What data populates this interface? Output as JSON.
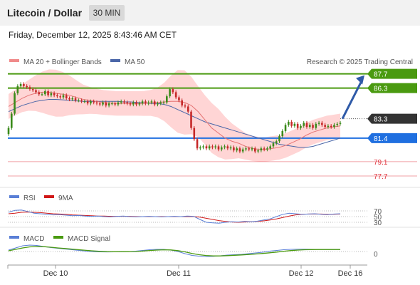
{
  "header": {
    "title": "Litecoin / Dollar",
    "timeframe": "30 MIN",
    "datetime": "Friday, December 12, 2025 8:43:46 AM CET"
  },
  "legend": {
    "ma20_label": "MA 20 + Bollinger Bands",
    "ma50_label": "MA 50",
    "credit": "Research © 2025 Trading Central"
  },
  "colors": {
    "resistance": "#4a9a10",
    "support": "#1f6fe0",
    "pivot": "#333333",
    "weak": "#e0313b",
    "candle_up": "#3a8a1a",
    "candle_down": "#c62828",
    "bollinger": "#ffc7c7",
    "ma20": "#e57373",
    "ma50": "#4a66a8",
    "rsi": "#5a7fd6",
    "rsi_ma": "#d01818",
    "macd": "#5a7fd6",
    "macd_signal": "#4a9a10"
  },
  "levels": [
    {
      "value": 87.7,
      "label": "87.7",
      "style": "box",
      "color": "#4a9a10"
    },
    {
      "value": 86.3,
      "label": "86.3",
      "style": "box",
      "color": "#4a9a10"
    },
    {
      "value": 83.3,
      "label": "83.3",
      "style": "box",
      "color": "#333333"
    },
    {
      "value": 81.4,
      "label": "81.4",
      "style": "box",
      "color": "#1f6fe0"
    },
    {
      "value": 79.1,
      "label": "79.1",
      "style": "text",
      "color": "#e0313b"
    },
    {
      "value": 77.7,
      "label": "77.7",
      "style": "text",
      "color": "#e0313b"
    }
  ],
  "rsi_panel": {
    "rsi_label": "RSI",
    "ma_label": "9MA",
    "levels": [
      "70",
      "50",
      "30"
    ]
  },
  "macd_panel": {
    "macd_label": "MACD",
    "signal_label": "MACD Signal",
    "zero_label": "0"
  },
  "xaxis": {
    "labels": [
      "Dec 10",
      "Dec 11",
      "Dec 12",
      "Dec 16"
    ]
  },
  "chart_data": {
    "type": "candlestick",
    "ylim": [
      77.0,
      88.3
    ],
    "price_close": [
      82.4,
      83.8,
      85.8,
      86.5,
      86.7,
      86.5,
      86.4,
      86.2,
      86.1,
      85.9,
      85.7,
      85.7,
      86.0,
      85.6,
      85.8,
      85.6,
      85.5,
      85.4,
      85.6,
      85.3,
      85.2,
      85.3,
      85.1,
      85.1,
      85.0,
      85.0,
      84.8,
      85.0,
      84.9,
      84.8,
      84.7,
      84.9,
      84.6,
      84.8,
      84.8,
      84.7,
      84.9,
      85.0,
      84.9,
      84.8,
      84.7,
      84.9,
      84.7,
      84.8,
      85.0,
      84.8,
      84.9,
      85.0,
      84.7,
      84.8,
      84.9,
      84.9,
      85.5,
      86.2,
      85.9,
      85.4,
      85.1,
      84.6,
      84.5,
      84.0,
      82.4,
      81.3,
      80.4,
      80.5,
      80.6,
      80.4,
      80.6,
      80.5,
      80.6,
      80.3,
      80.5,
      80.6,
      80.4,
      80.5,
      80.2,
      80.4,
      80.1,
      80.3,
      80.4,
      80.3,
      80.4,
      80.1,
      80.2,
      80.4,
      80.3,
      80.4,
      80.6,
      80.9,
      81.1,
      81.6,
      82.1,
      82.7,
      83.0,
      82.6,
      82.8,
      82.4,
      82.6,
      82.9,
      82.5,
      82.7,
      82.4,
      82.8,
      82.9,
      82.7,
      82.5,
      82.6,
      82.5,
      82.7,
      82.8,
      82.9
    ],
    "ma20": [
      84.5,
      84.9,
      85.3,
      85.6,
      85.8,
      85.9,
      85.9,
      85.8,
      85.7,
      85.6,
      85.4,
      85.2,
      85.1,
      85.0,
      84.9,
      84.85,
      84.8,
      84.8,
      84.8,
      84.8,
      84.8,
      84.85,
      84.9,
      84.95,
      85.0,
      85.0,
      84.9,
      84.6,
      84.0,
      83.2,
      82.4,
      81.9,
      81.4,
      81.1,
      80.9,
      80.6,
      80.4,
      80.3,
      80.3,
      80.4,
      80.5,
      80.7,
      81.0,
      81.3,
      81.7,
      82.0,
      82.2,
      82.4,
      82.5,
      82.6
    ],
    "ma50": [
      84.0,
      84.3,
      84.6,
      84.8,
      85.0,
      85.1,
      85.2,
      85.2,
      85.15,
      85.1,
      85.05,
      85.0,
      85.0,
      85.0,
      85.0,
      85.0,
      85.0,
      84.95,
      84.95,
      84.9,
      84.85,
      84.8,
      84.8,
      84.7,
      84.5,
      84.2,
      83.9,
      83.6,
      83.3,
      83.0,
      82.8,
      82.6,
      82.4,
      82.2,
      82.0,
      81.8,
      81.6,
      81.4,
      81.2,
      81.0,
      80.8,
      80.7,
      80.6,
      80.5,
      80.5,
      80.6,
      80.8,
      81.0,
      81.2,
      81.4
    ],
    "forecast": {
      "from": 83.3,
      "to": 87.7
    },
    "rsi": [
      65,
      72,
      73,
      68,
      62,
      60,
      58,
      56,
      57,
      55,
      53,
      54,
      52,
      51,
      52,
      50,
      49,
      51,
      52,
      50,
      49,
      50,
      51,
      50,
      49,
      50,
      51,
      50,
      52,
      51,
      40,
      30,
      28,
      27,
      30,
      32,
      31,
      33,
      32,
      34,
      38,
      42,
      50,
      58,
      62,
      60,
      58,
      59,
      60,
      58,
      57,
      59,
      60
    ],
    "rsi_ma": [
      60,
      62,
      65,
      66,
      65,
      64,
      62,
      60,
      59,
      58,
      56,
      55,
      54,
      53,
      52,
      52,
      51,
      51,
      51,
      51,
      50,
      50,
      50,
      50,
      50,
      50,
      50,
      50,
      50,
      50,
      48,
      44,
      40,
      36,
      33,
      31,
      30,
      31,
      32,
      33,
      35,
      38,
      42,
      47,
      52,
      56,
      58,
      59,
      59,
      59,
      58,
      58,
      59
    ],
    "macd": [
      0.2,
      0.5,
      0.8,
      0.9,
      0.85,
      0.7,
      0.55,
      0.45,
      0.35,
      0.25,
      0.15,
      0.05,
      -0.02,
      -0.05,
      -0.06,
      -0.05,
      -0.03,
      -0.01,
      0.05,
      0.15,
      0.25,
      0.3,
      0.3,
      0.2,
      0.0,
      -0.3,
      -0.55,
      -0.65,
      -0.7,
      -0.68,
      -0.6,
      -0.5,
      -0.45,
      -0.4,
      -0.3,
      -0.2,
      -0.1,
      0.05,
      0.15,
      0.25,
      0.3,
      0.32,
      0.33,
      0.3,
      0.28,
      0.27,
      0.27,
      0.28
    ],
    "macd_signal": [
      0.1,
      0.3,
      0.5,
      0.65,
      0.7,
      0.68,
      0.6,
      0.5,
      0.42,
      0.33,
      0.25,
      0.16,
      0.08,
      0.02,
      -0.02,
      -0.03,
      -0.03,
      -0.02,
      0.0,
      0.06,
      0.14,
      0.2,
      0.24,
      0.22,
      0.12,
      -0.05,
      -0.28,
      -0.45,
      -0.56,
      -0.62,
      -0.62,
      -0.58,
      -0.53,
      -0.48,
      -0.42,
      -0.35,
      -0.27,
      -0.18,
      -0.08,
      0.04,
      0.13,
      0.2,
      0.25,
      0.27,
      0.28,
      0.28,
      0.28,
      0.28
    ]
  }
}
